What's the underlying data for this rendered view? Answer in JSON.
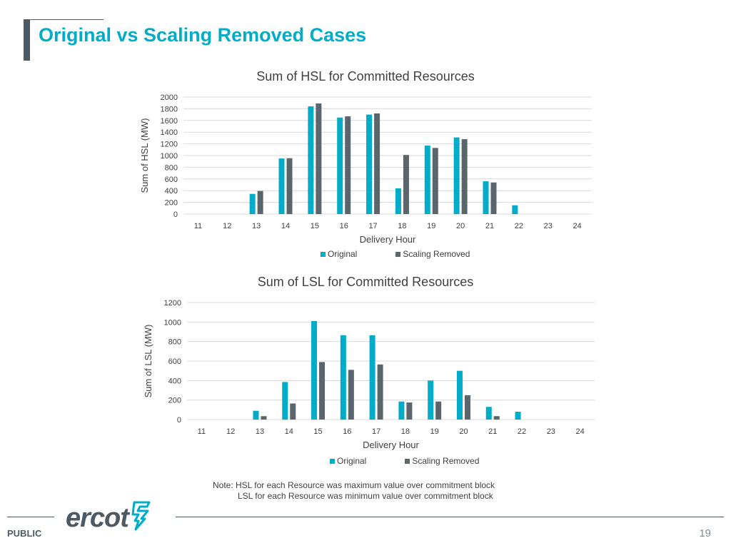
{
  "page": {
    "title": "Original vs Scaling Removed Cases",
    "note_line1": "Note: HSL for each Resource was maximum value over commitment block",
    "note_line2": "LSL for each Resource was minimum value over commitment block",
    "footer_label": "PUBLIC",
    "page_number": "19",
    "logo_text": "ercot",
    "logo_icon": "ercot-bolt-icon"
  },
  "colors": {
    "original": "#00acc8",
    "scaling_removed": "#5b656c",
    "grid": "#d9d9d9",
    "title": "#00acc8"
  },
  "chart_data": [
    {
      "type": "bar",
      "title": "Sum of HSL for Committed Resources",
      "xlabel": "Delivery Hour",
      "ylabel": "Sum of HSL (MW)",
      "categories": [
        "11",
        "12",
        "13",
        "14",
        "15",
        "16",
        "17",
        "18",
        "19",
        "20",
        "21",
        "22",
        "23",
        "24"
      ],
      "ylim": [
        0,
        2000
      ],
      "yticks": [
        0,
        200,
        400,
        600,
        800,
        1000,
        1200,
        1400,
        1600,
        1800,
        2000
      ],
      "grid": true,
      "legend_position": "bottom",
      "series": [
        {
          "name": "Original",
          "values": [
            0,
            0,
            345,
            950,
            1840,
            1650,
            1700,
            440,
            1170,
            1310,
            560,
            150,
            0,
            0
          ]
        },
        {
          "name": "Scaling Removed",
          "values": [
            0,
            0,
            395,
            955,
            1890,
            1670,
            1720,
            1010,
            1130,
            1280,
            540,
            0,
            0,
            0
          ]
        }
      ]
    },
    {
      "type": "bar",
      "title": "Sum of LSL for Committed Resources",
      "xlabel": "Delivery Hour",
      "ylabel": "Sum of LSL (MW)",
      "categories": [
        "11",
        "12",
        "13",
        "14",
        "15",
        "16",
        "17",
        "18",
        "19",
        "20",
        "21",
        "22",
        "23",
        "24"
      ],
      "ylim": [
        0,
        1200
      ],
      "yticks": [
        0,
        200,
        400,
        600,
        800,
        1000,
        1200
      ],
      "grid": true,
      "legend_position": "bottom",
      "series": [
        {
          "name": "Original",
          "values": [
            0,
            0,
            90,
            385,
            1010,
            865,
            865,
            185,
            400,
            500,
            130,
            80,
            0,
            0
          ]
        },
        {
          "name": "Scaling Removed",
          "values": [
            0,
            0,
            35,
            165,
            590,
            510,
            565,
            175,
            185,
            250,
            35,
            0,
            0,
            0
          ]
        }
      ]
    }
  ]
}
